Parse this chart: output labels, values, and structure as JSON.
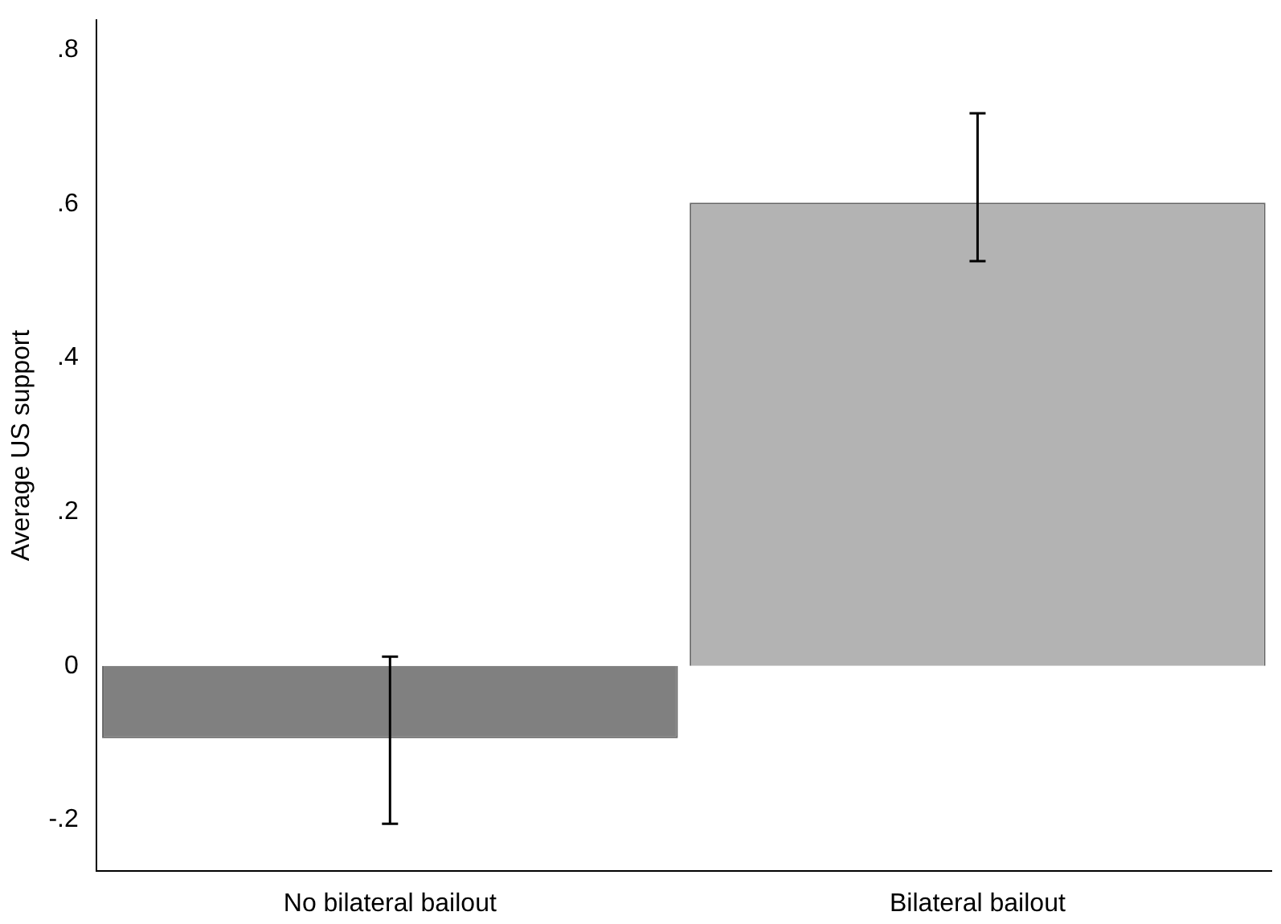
{
  "chart_data": {
    "type": "bar",
    "ylabel": "Average US support",
    "categories": [
      "No bilateral bailout",
      "Bilateral bailout"
    ],
    "values": [
      -0.094,
      0.602
    ],
    "colors": [
      "#808080",
      "#b3b3b3"
    ],
    "errors": [
      [
        -0.205,
        0.012
      ],
      [
        0.526,
        0.718
      ]
    ],
    "ylim": [
      -0.266,
      0.839
    ],
    "yticks": [
      {
        "value": -0.2,
        "label": "-.2"
      },
      0,
      {
        "value": 0.2,
        "label": ".2"
      },
      {
        "value": 0.4,
        "label": ".4"
      },
      {
        "value": 0.6,
        "label": ".6"
      },
      {
        "value": 0.8,
        "label": ".8"
      }
    ],
    "grid": false,
    "legend": false
  }
}
